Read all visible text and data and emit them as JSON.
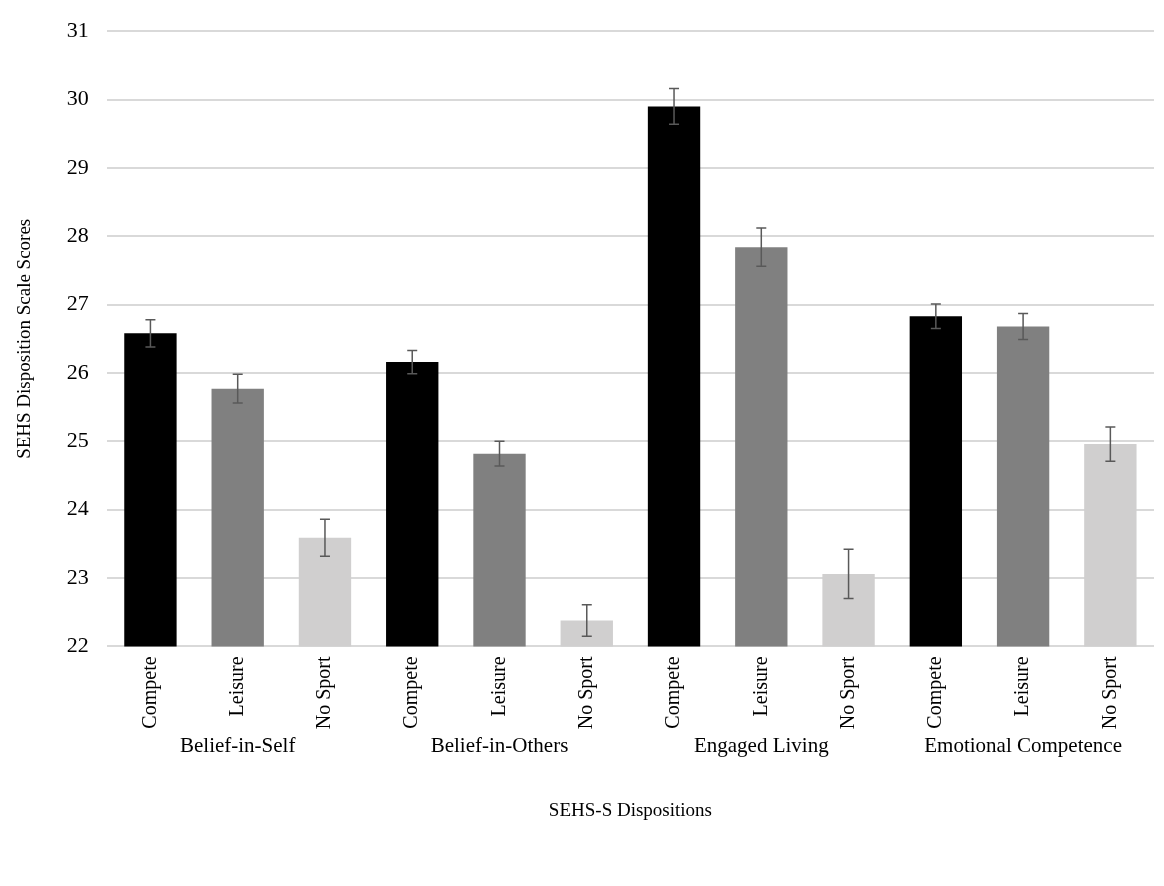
{
  "chart_data": {
    "type": "bar",
    "xlabel": "SEHS-S Dispositions",
    "ylabel": "SEHS Disposition Scale Scores",
    "categories": [
      "Compete",
      "Leisure",
      "No Sport",
      "Compete",
      "Leisure",
      "No Sport",
      "Compete",
      "Leisure",
      "No Sport",
      "Compete",
      "Leisure",
      "No Sport"
    ],
    "values": [
      26.58,
      25.77,
      23.59,
      26.16,
      24.82,
      22.38,
      29.9,
      27.84,
      23.06,
      26.83,
      26.68,
      24.96
    ],
    "errors": [
      0.2,
      0.21,
      0.27,
      0.17,
      0.18,
      0.23,
      0.26,
      0.28,
      0.36,
      0.18,
      0.19,
      0.25
    ],
    "colors": [
      "#000000",
      "#808080",
      "#d0cfcf",
      "#000000",
      "#808080",
      "#d0cfcf",
      "#000000",
      "#808080",
      "#d0cfcf",
      "#000000",
      "#808080",
      "#d0cfcf"
    ],
    "annotations": [
      "Belief-in-Self",
      "Belief-in-Others",
      "Engaged Living",
      "Emotional Competence"
    ],
    "ylim": [
      22,
      31
    ],
    "yticks": [
      22,
      23,
      24,
      25,
      26,
      27,
      28,
      29,
      30,
      31
    ],
    "grid": "y",
    "legend": false
  }
}
